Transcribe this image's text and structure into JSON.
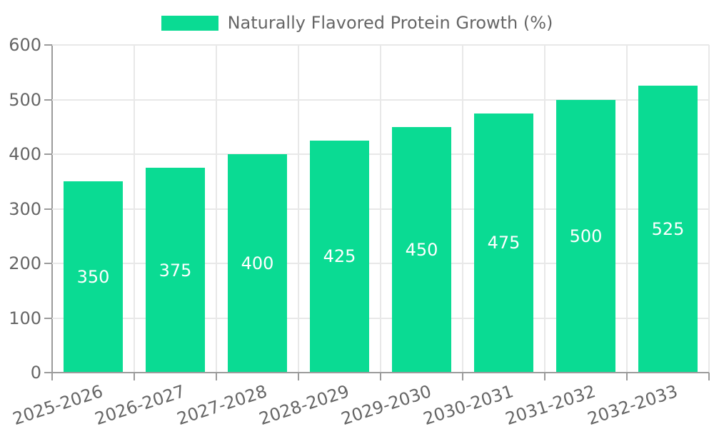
{
  "chart_data": {
    "type": "bar",
    "title": "",
    "legend": [
      "Naturally Flavored Protein Growth (%)"
    ],
    "legend_position": "top",
    "categories": [
      "2025-2026",
      "2026-2027",
      "2027-2028",
      "2028-2029",
      "2029-2030",
      "2030-2031",
      "2031-2032",
      "2032-2033"
    ],
    "series": [
      {
        "name": "Naturally Flavored Protein Growth (%)",
        "values": [
          350,
          375,
          400,
          425,
          450,
          475,
          500,
          525
        ]
      }
    ],
    "value_labels": [
      "350",
      "375",
      "400",
      "425",
      "450",
      "475",
      "500",
      "525"
    ],
    "xlabel": "",
    "ylabel": "",
    "ylim": [
      0,
      600
    ],
    "ytick_step": 100,
    "ytick_labels": [
      "0",
      "100",
      "200",
      "300",
      "400",
      "500",
      "600"
    ],
    "grid": "both"
  },
  "colors": {
    "bar": "#0adb93",
    "gridline": "#e8e8e8",
    "spine": "#9b9b9b",
    "tick": "#9b9b9b",
    "axis_text": "#666666",
    "legend_text": "#666666",
    "value_label_text": "#ffffff",
    "background": "#ffffff"
  }
}
